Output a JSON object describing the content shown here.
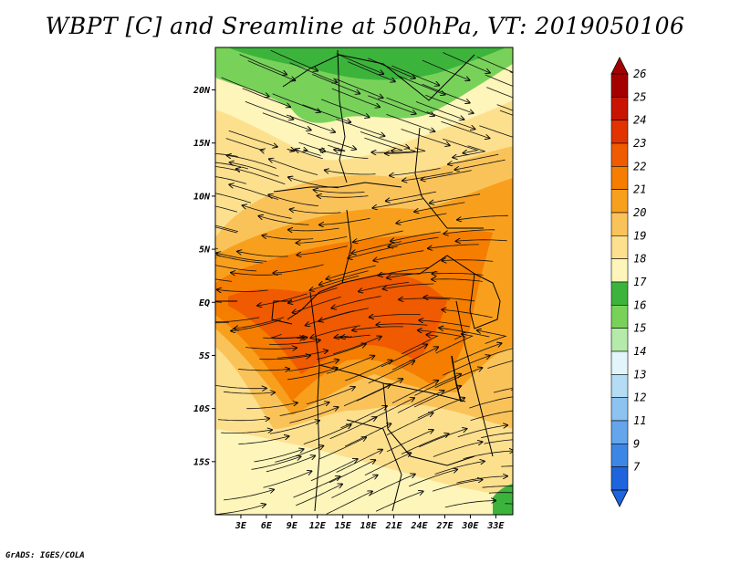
{
  "title": "WBPT [C] and Sreamline at 500hPa, VT: 2019050106",
  "credit": "GrADS: IGES/COLA",
  "map": {
    "lon_range": [
      0,
      35
    ],
    "lat_range": [
      -20,
      24
    ],
    "lat_ticks": [
      {
        "value": 20,
        "label": "20N"
      },
      {
        "value": 15,
        "label": "15N"
      },
      {
        "value": 10,
        "label": "10N"
      },
      {
        "value": 5,
        "label": "5N"
      },
      {
        "value": 0,
        "label": "EQ"
      },
      {
        "value": -5,
        "label": "5S"
      },
      {
        "value": -10,
        "label": "10S"
      },
      {
        "value": -15,
        "label": "15S"
      }
    ],
    "lon_ticks": [
      {
        "value": 3,
        "label": "3E"
      },
      {
        "value": 6,
        "label": "6E"
      },
      {
        "value": 9,
        "label": "9E"
      },
      {
        "value": 12,
        "label": "12E"
      },
      {
        "value": 15,
        "label": "15E"
      },
      {
        "value": 18,
        "label": "18E"
      },
      {
        "value": 21,
        "label": "21E"
      },
      {
        "value": 24,
        "label": "24E"
      },
      {
        "value": 27,
        "label": "27E"
      },
      {
        "value": 30,
        "label": "30E"
      },
      {
        "value": 33,
        "label": "33E"
      }
    ]
  },
  "colorbar": {
    "levels": [
      {
        "label": "26",
        "color": "#a50000"
      },
      {
        "label": "25",
        "color": "#c81400"
      },
      {
        "label": "24",
        "color": "#e13200"
      },
      {
        "label": "23",
        "color": "#f05a00"
      },
      {
        "label": "22",
        "color": "#f57d00"
      },
      {
        "label": "21",
        "color": "#f8a01e"
      },
      {
        "label": "20",
        "color": "#fac35a"
      },
      {
        "label": "19",
        "color": "#fde08e"
      },
      {
        "label": "18",
        "color": "#fdf5b9"
      },
      {
        "label": "17",
        "color": "#3cb43c"
      },
      {
        "label": "16",
        "color": "#78d25a"
      },
      {
        "label": "15",
        "color": "#b4ebaa"
      },
      {
        "label": "14",
        "color": "#e1f5fa"
      },
      {
        "label": "13",
        "color": "#b4dcf5"
      },
      {
        "label": "12",
        "color": "#8cc3f0"
      },
      {
        "label": "11",
        "color": "#64a5ec"
      },
      {
        "label": "9",
        "color": "#3c87e6"
      },
      {
        "label": "7",
        "color": "#1e64dc"
      }
    ],
    "top_arrow_color": "#a50000",
    "bottom_arrow_color": "#1e64dc"
  }
}
